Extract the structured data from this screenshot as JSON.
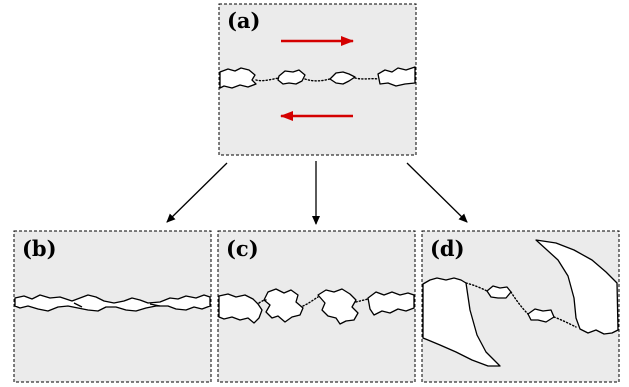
{
  "panels": {
    "a": {
      "label": "(a)"
    },
    "b": {
      "label": "(b)"
    },
    "c": {
      "label": "(c)"
    },
    "d": {
      "label": "(d)"
    }
  },
  "colors": {
    "panel_fill": "#ebebeb",
    "shear_arrow": "#d40000"
  }
}
